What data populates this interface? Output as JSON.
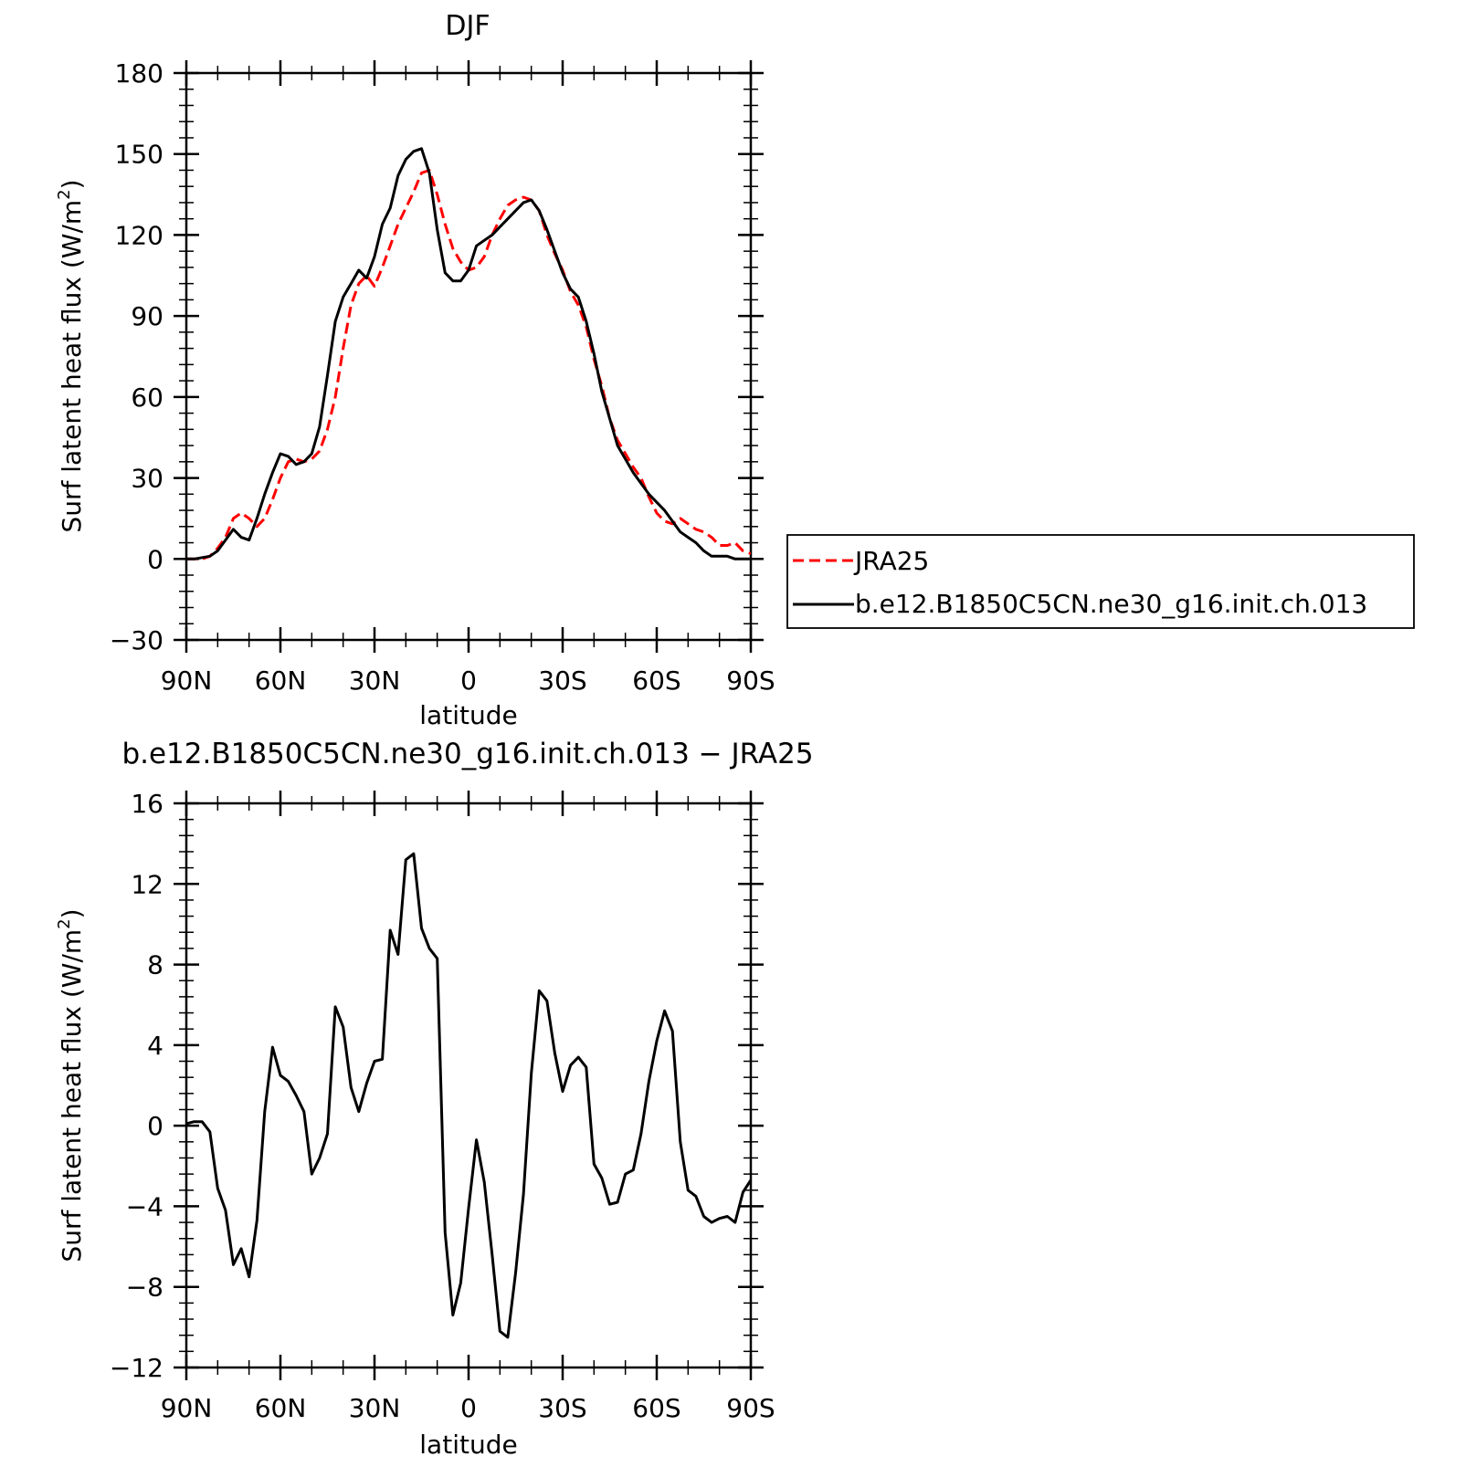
{
  "chart_data": [
    {
      "type": "line",
      "title": "DJF",
      "xlabel": "latitude",
      "ylabel": "Surf latent heat flux (W/m²)",
      "ylabel_main": "Surf latent heat flux (W/m",
      "ylabel_sup": "2",
      "ylabel_end": ")",
      "xlim": [
        90,
        -90
      ],
      "ylim": [
        -30,
        180
      ],
      "yticks": [
        -30,
        0,
        30,
        60,
        90,
        120,
        150,
        180
      ],
      "ytick_labels": [
        "−30",
        "0",
        "30",
        "60",
        "90",
        "120",
        "150",
        "180"
      ],
      "xticks": [
        90,
        60,
        30,
        0,
        -30,
        -60,
        -90
      ],
      "xtick_labels": [
        "90N",
        "60N",
        "30N",
        "0",
        "30S",
        "60S",
        "90S"
      ],
      "legend": {
        "placement": "right",
        "entries": [
          "JRA25",
          "b.e12.B1850C5CN.ne30_g16.init.ch.013"
        ]
      },
      "series": [
        {
          "name": "JRA25",
          "color": "#ff0000",
          "dash": true,
          "x": [
            90,
            87.5,
            85,
            82.5,
            80,
            77.5,
            75,
            72.5,
            70,
            67.5,
            65,
            62.5,
            60,
            57.5,
            55,
            52.5,
            50,
            47.5,
            45,
            42.5,
            40,
            37.5,
            35,
            32.5,
            30,
            27.5,
            25,
            22.5,
            20,
            17.5,
            15,
            12.5,
            10,
            7.5,
            5,
            2.5,
            0,
            -2.5,
            -5,
            -7.5,
            -10,
            -12.5,
            -15,
            -17.5,
            -20,
            -22.5,
            -25,
            -27.5,
            -30,
            -32.5,
            -35,
            -37.5,
            -40,
            -42.5,
            -45,
            -47.5,
            -50,
            -52.5,
            -55,
            -57.5,
            -60,
            -62.5,
            -65,
            -67.5,
            -70,
            -72.5,
            -75,
            -77.5,
            -80,
            -82.5,
            -85,
            -87.5,
            -90
          ],
          "values": [
            0,
            0,
            0,
            1,
            4,
            8,
            15,
            17,
            15,
            12,
            15,
            22,
            30,
            36,
            37,
            36,
            37,
            40,
            48,
            60,
            78,
            94,
            102,
            105,
            101,
            108,
            116,
            124,
            130,
            136,
            143,
            144,
            135,
            124,
            115,
            110,
            107,
            108,
            112,
            120,
            126,
            131,
            133,
            134,
            133,
            129,
            120,
            113,
            107,
            99,
            94,
            86,
            74,
            64,
            52,
            44,
            39,
            34,
            30,
            23,
            17,
            14,
            13,
            15,
            13,
            11,
            10,
            8,
            5,
            5,
            6,
            3,
            2
          ]
        },
        {
          "name": "b.e12.B1850C5CN.ne30_g16.init.ch.013",
          "color": "#000000",
          "dash": false,
          "x": [
            90,
            87.5,
            85,
            82.5,
            80,
            77.5,
            75,
            72.5,
            70,
            67.5,
            65,
            62.5,
            60,
            57.5,
            55,
            52.5,
            50,
            47.5,
            45,
            42.5,
            40,
            37.5,
            35,
            32.5,
            30,
            27.5,
            25,
            22.5,
            20,
            17.5,
            15,
            12.5,
            10,
            7.5,
            5,
            2.5,
            0,
            -2.5,
            -5,
            -7.5,
            -10,
            -12.5,
            -15,
            -17.5,
            -20,
            -22.5,
            -25,
            -27.5,
            -30,
            -32.5,
            -35,
            -37.5,
            -40,
            -42.5,
            -45,
            -47.5,
            -50,
            -52.5,
            -55,
            -57.5,
            -60,
            -62.5,
            -65,
            -67.5,
            -70,
            -72.5,
            -75,
            -77.5,
            -80,
            -82.5,
            -85,
            -87.5,
            -90
          ],
          "values": [
            0,
            0,
            0.5,
            1,
            3,
            7,
            11,
            8,
            7,
            15,
            24,
            32,
            39,
            38,
            35,
            36,
            39,
            49,
            68,
            88,
            97,
            102,
            107,
            104,
            112,
            124,
            130,
            142,
            148,
            151,
            152,
            143,
            122,
            106,
            103,
            103,
            107,
            116,
            118,
            120,
            123,
            126,
            129,
            132,
            133,
            129,
            122,
            114,
            106,
            100,
            97,
            88,
            76,
            62,
            52,
            42,
            37,
            32,
            28,
            24,
            21,
            18,
            14,
            10,
            8,
            6,
            3,
            1,
            1,
            1,
            0,
            0,
            0
          ]
        }
      ]
    },
    {
      "type": "line",
      "title": "b.e12.B1850C5CN.ne30_g16.init.ch.013 − JRA25",
      "xlabel": "latitude",
      "ylabel": "Surf latent heat flux (W/m²)",
      "ylabel_main": "Surf latent heat flux (W/m",
      "ylabel_sup": "2",
      "ylabel_end": ")",
      "xlim": [
        90,
        -90
      ],
      "ylim": [
        -12,
        16
      ],
      "yticks": [
        -12,
        -8,
        -4,
        0,
        4,
        8,
        12,
        16
      ],
      "ytick_labels": [
        "−12",
        "−8",
        "−4",
        "0",
        "4",
        "8",
        "12",
        "16"
      ],
      "xticks": [
        90,
        60,
        30,
        0,
        -30,
        -60,
        -90
      ],
      "xtick_labels": [
        "90N",
        "60N",
        "30N",
        "0",
        "30S",
        "60S",
        "90S"
      ],
      "series": [
        {
          "color": "#000000",
          "dash": false,
          "x": [
            90,
            87.5,
            85,
            82.5,
            80,
            77.5,
            75,
            72.5,
            70,
            67.5,
            65,
            62.5,
            60,
            57.5,
            55,
            52.5,
            50,
            47.5,
            45,
            42.5,
            40,
            37.5,
            35,
            32.5,
            30,
            27.5,
            25,
            22.5,
            20,
            17.5,
            15,
            12.5,
            10,
            7.5,
            5,
            2.5,
            0,
            -2.5,
            -5,
            -7.5,
            -10,
            -12.5,
            -15,
            -17.5,
            -20,
            -22.5,
            -25,
            -27.5,
            -30,
            -32.5,
            -35,
            -37.5,
            -40,
            -42.5,
            -45,
            -47.5,
            -50,
            -52.5,
            -55,
            -57.5,
            -60,
            -62.5,
            -65,
            -67.5,
            -70,
            -72.5,
            -75,
            -77.5,
            -80,
            -82.5,
            -85,
            -87.5,
            -90
          ],
          "values": [
            0.1,
            0.2,
            0.2,
            -0.3,
            -3.1,
            -4.2,
            -6.9,
            -6.1,
            -7.5,
            -4.7,
            0.7,
            3.9,
            2.5,
            2.2,
            1.5,
            0.7,
            -2.4,
            -1.6,
            -0.4,
            5.9,
            4.9,
            1.9,
            0.7,
            2.1,
            3.2,
            3.3,
            9.7,
            8.5,
            13.2,
            13.5,
            9.8,
            8.8,
            8.3,
            -5.3,
            -9.4,
            -7.8,
            -4.1,
            -0.7,
            -2.8,
            -6.4,
            -10.2,
            -10.5,
            -7.3,
            -3.4,
            2.6,
            6.7,
            6.2,
            3.6,
            1.7,
            3.0,
            3.4,
            2.9,
            -1.9,
            -2.6,
            -3.9,
            -3.8,
            -2.4,
            -2.2,
            -0.4,
            2.2,
            4.2,
            5.7,
            4.7,
            -0.8,
            -3.2,
            -3.5,
            -4.5,
            -4.8,
            -4.6,
            -4.5,
            -4.8,
            -3.3,
            -2.7
          ]
        }
      ]
    }
  ]
}
